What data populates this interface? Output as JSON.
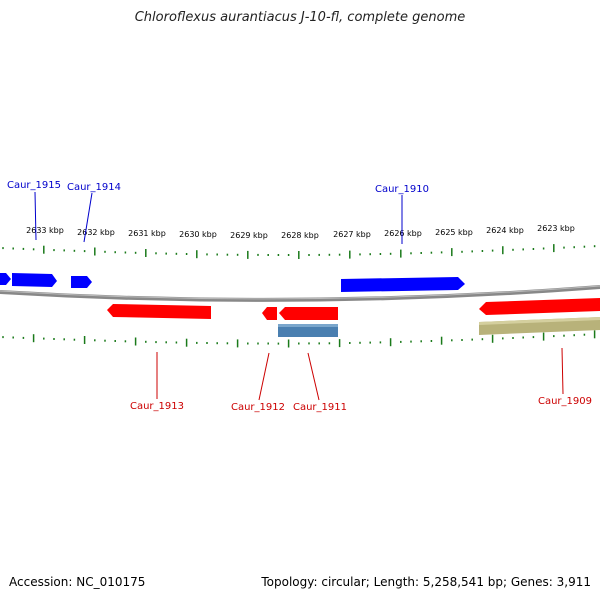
{
  "title": "Chloroflexus aurantiacus J-10-fl, complete genome",
  "footer": {
    "accession": "Accession: NC_010175",
    "summary": "Topology: circular; Length: 5,258,541 bp; Genes: 3,911"
  },
  "colors": {
    "forward_gene": "#0000ff",
    "reverse_gene": "#ff0000",
    "other_reverse_feature": "#b8b27a",
    "other_feature_blue": "#4a7fb0",
    "backbone": "#888888",
    "ticks": "#1a7a1a",
    "forward_label": "#0000cc",
    "reverse_label": "#cc0000"
  },
  "scale_labels": [
    "2633 kbp",
    "2632 kbp",
    "2631 kbp",
    "2630 kbp",
    "2629 kbp",
    "2628 kbp",
    "2627 kbp",
    "2626 kbp",
    "2625 kbp",
    "2624 kbp",
    "2623 kbp"
  ],
  "gene_labels": {
    "forward": [
      "Caur_1915",
      "Caur_1914",
      "Caur_1910"
    ],
    "reverse": [
      "Caur_1913",
      "Caur_1912",
      "Caur_1911",
      "Caur_1909"
    ]
  }
}
